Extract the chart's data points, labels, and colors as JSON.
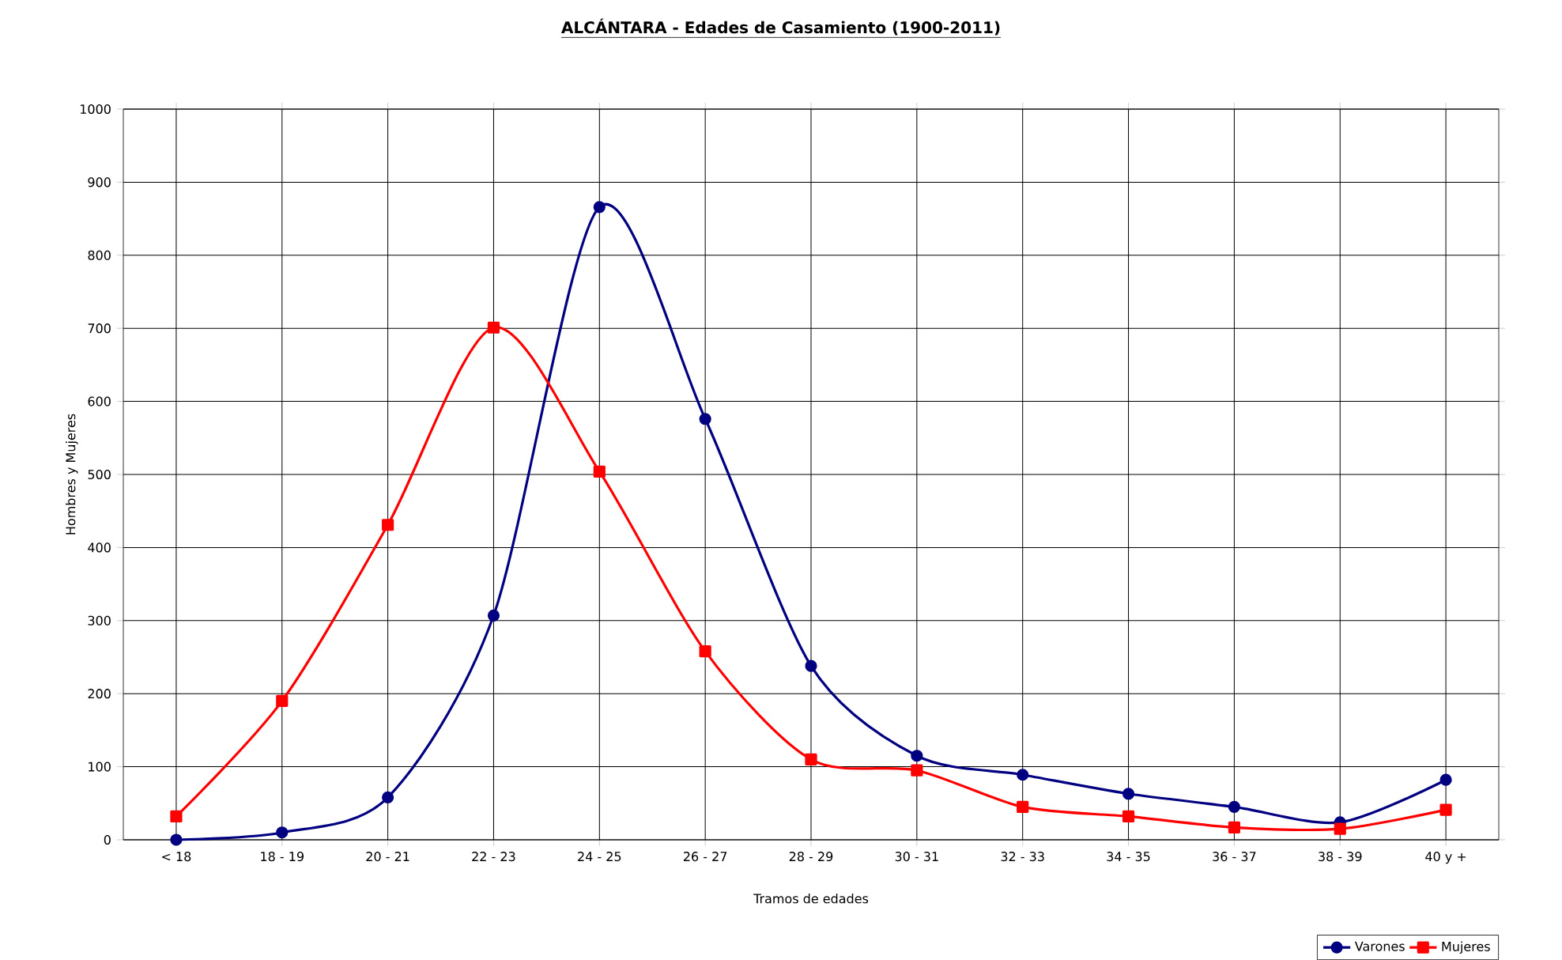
{
  "chart_data": {
    "type": "line",
    "title": "ALCÁNTARA - Edades de Casamiento (1900-2011)",
    "xlabel": "Tramos de edades",
    "ylabel": "Hombres y Mujeres",
    "categories": [
      "< 18",
      "18 - 19",
      "20 - 21",
      "22 - 23",
      "24 - 25",
      "26 - 27",
      "28 - 29",
      "30 - 31",
      "32 - 33",
      "34 - 35",
      "36 - 37",
      "38 - 39",
      "40 y +"
    ],
    "series": [
      {
        "name": "Varones",
        "color": "#000080",
        "marker": "circle",
        "values": [
          0,
          10,
          58,
          307,
          866,
          576,
          238,
          115,
          89,
          63,
          45,
          24,
          82
        ]
      },
      {
        "name": "Mujeres",
        "color": "#ff0000",
        "marker": "square",
        "values": [
          32,
          190,
          431,
          701,
          504,
          258,
          110,
          95,
          45,
          32,
          17,
          15,
          41
        ]
      }
    ],
    "ylim": [
      0,
      1000
    ],
    "yticks": [
      0,
      100,
      200,
      300,
      400,
      500,
      600,
      700,
      800,
      900,
      1000
    ],
    "grid": true,
    "legend": "bottom right",
    "line_style": "solid"
  }
}
